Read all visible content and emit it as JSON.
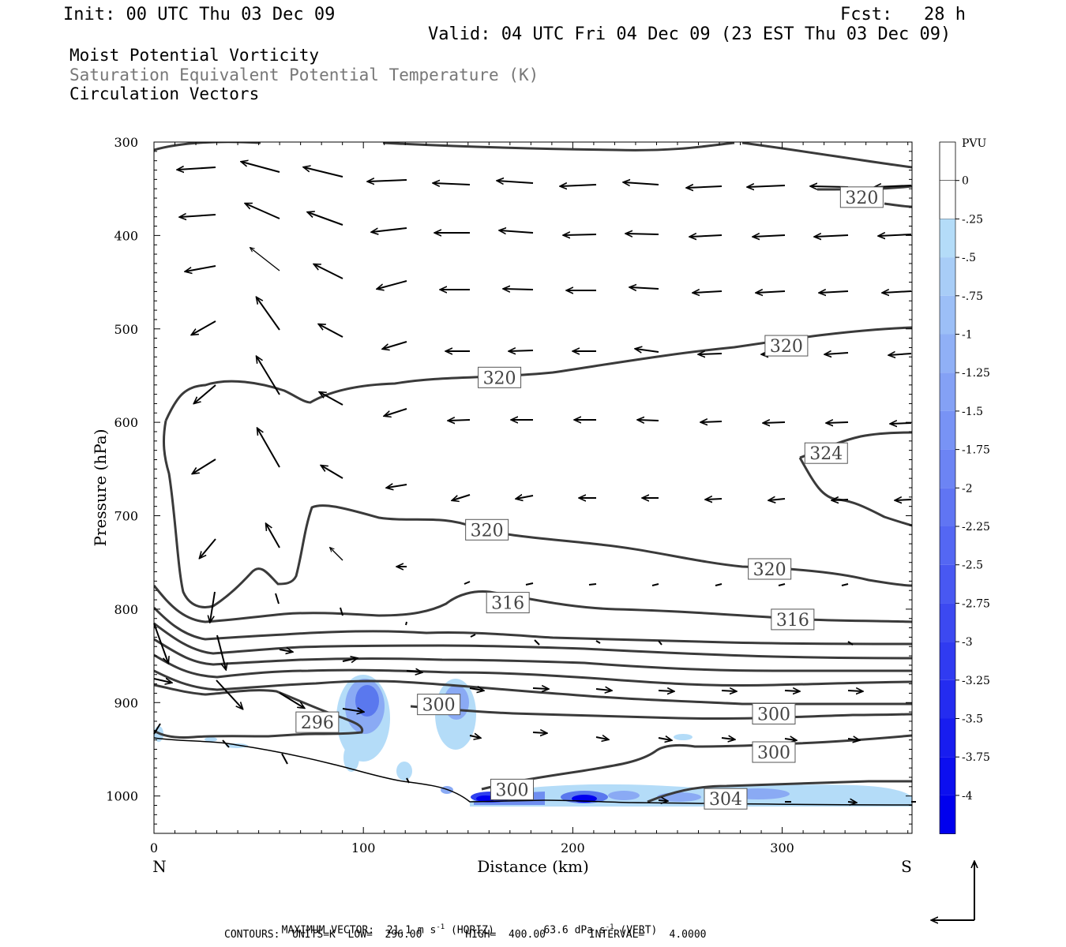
{
  "header": {
    "init": "Init: 00 UTC Thu 03 Dec 09",
    "fcst": "Fcst:   28 h",
    "valid": "Valid: 04 UTC Fri 04 Dec 09 (23 EST Thu 03 Dec 09)"
  },
  "legend_titles": {
    "field1": "Moist Potential Vorticity",
    "field2": "Saturation Equivalent Potential Temperature (K)",
    "field3": "Circulation Vectors"
  },
  "colors": {
    "contour": "#3a3a3a",
    "shade_light": "#b4dcf8",
    "shade_dark": "#0000ee",
    "terrain": "#000000"
  },
  "chart_data": {
    "type": "cross-section",
    "xlabel": "Distance (km)",
    "ylabel": "Pressure (hPa)",
    "xlim": [
      0,
      362
    ],
    "ylim_hPa": [
      300,
      1040
    ],
    "x_ticks": [
      "0",
      "100",
      "200",
      "300"
    ],
    "x_tick_values": [
      0,
      100,
      200,
      300
    ],
    "y_ticks": [
      "300",
      "400",
      "500",
      "600",
      "700",
      "800",
      "900",
      "1000"
    ],
    "y_tick_values": [
      300,
      400,
      500,
      600,
      700,
      800,
      900,
      1000
    ],
    "end_labels": {
      "left": "N",
      "right": "S"
    },
    "grid": false,
    "colorbar": {
      "unit": "PVU",
      "levels": [
        "0",
        "-.25",
        "-.5",
        "-.75",
        "-1",
        "-1.25",
        "-1.5",
        "-1.75",
        "-2",
        "-2.25",
        "-2.5",
        "-2.75",
        "-3",
        "-3.25",
        "-3.5",
        "-3.75",
        "-4"
      ]
    },
    "contour_labels": [
      {
        "text": "320",
        "x": 338,
        "p": 359
      },
      {
        "text": "320",
        "x": 302,
        "p": 518
      },
      {
        "text": "320",
        "x": 165,
        "p": 552
      },
      {
        "text": "324",
        "x": 321,
        "p": 633
      },
      {
        "text": "320",
        "x": 159,
        "p": 715
      },
      {
        "text": "320",
        "x": 294,
        "p": 757
      },
      {
        "text": "316",
        "x": 169,
        "p": 793
      },
      {
        "text": "316",
        "x": 305,
        "p": 811
      },
      {
        "text": "300",
        "x": 136,
        "p": 902
      },
      {
        "text": "296",
        "x": 78,
        "p": 921
      },
      {
        "text": "300",
        "x": 296,
        "p": 912
      },
      {
        "text": "300",
        "x": 296,
        "p": 953
      },
      {
        "text": "300",
        "x": 171,
        "p": 993
      },
      {
        "text": "304",
        "x": 273,
        "p": 1003
      }
    ],
    "footer": {
      "maxvec_label": "MAXIMUM VECTOR:",
      "maxvec_horiz": "21.1 m s",
      "maxvec_horiz_tail": "(HORIZ)",
      "maxvec_vert": "63.6 dPa s",
      "maxvec_vert_tail": "(VERT)",
      "superscript": "-1",
      "contours": "CONTOURS:  UNITS=K  LOW=  296.00       HIGH=  400.00       INTERVAL=    4.0000"
    }
  }
}
